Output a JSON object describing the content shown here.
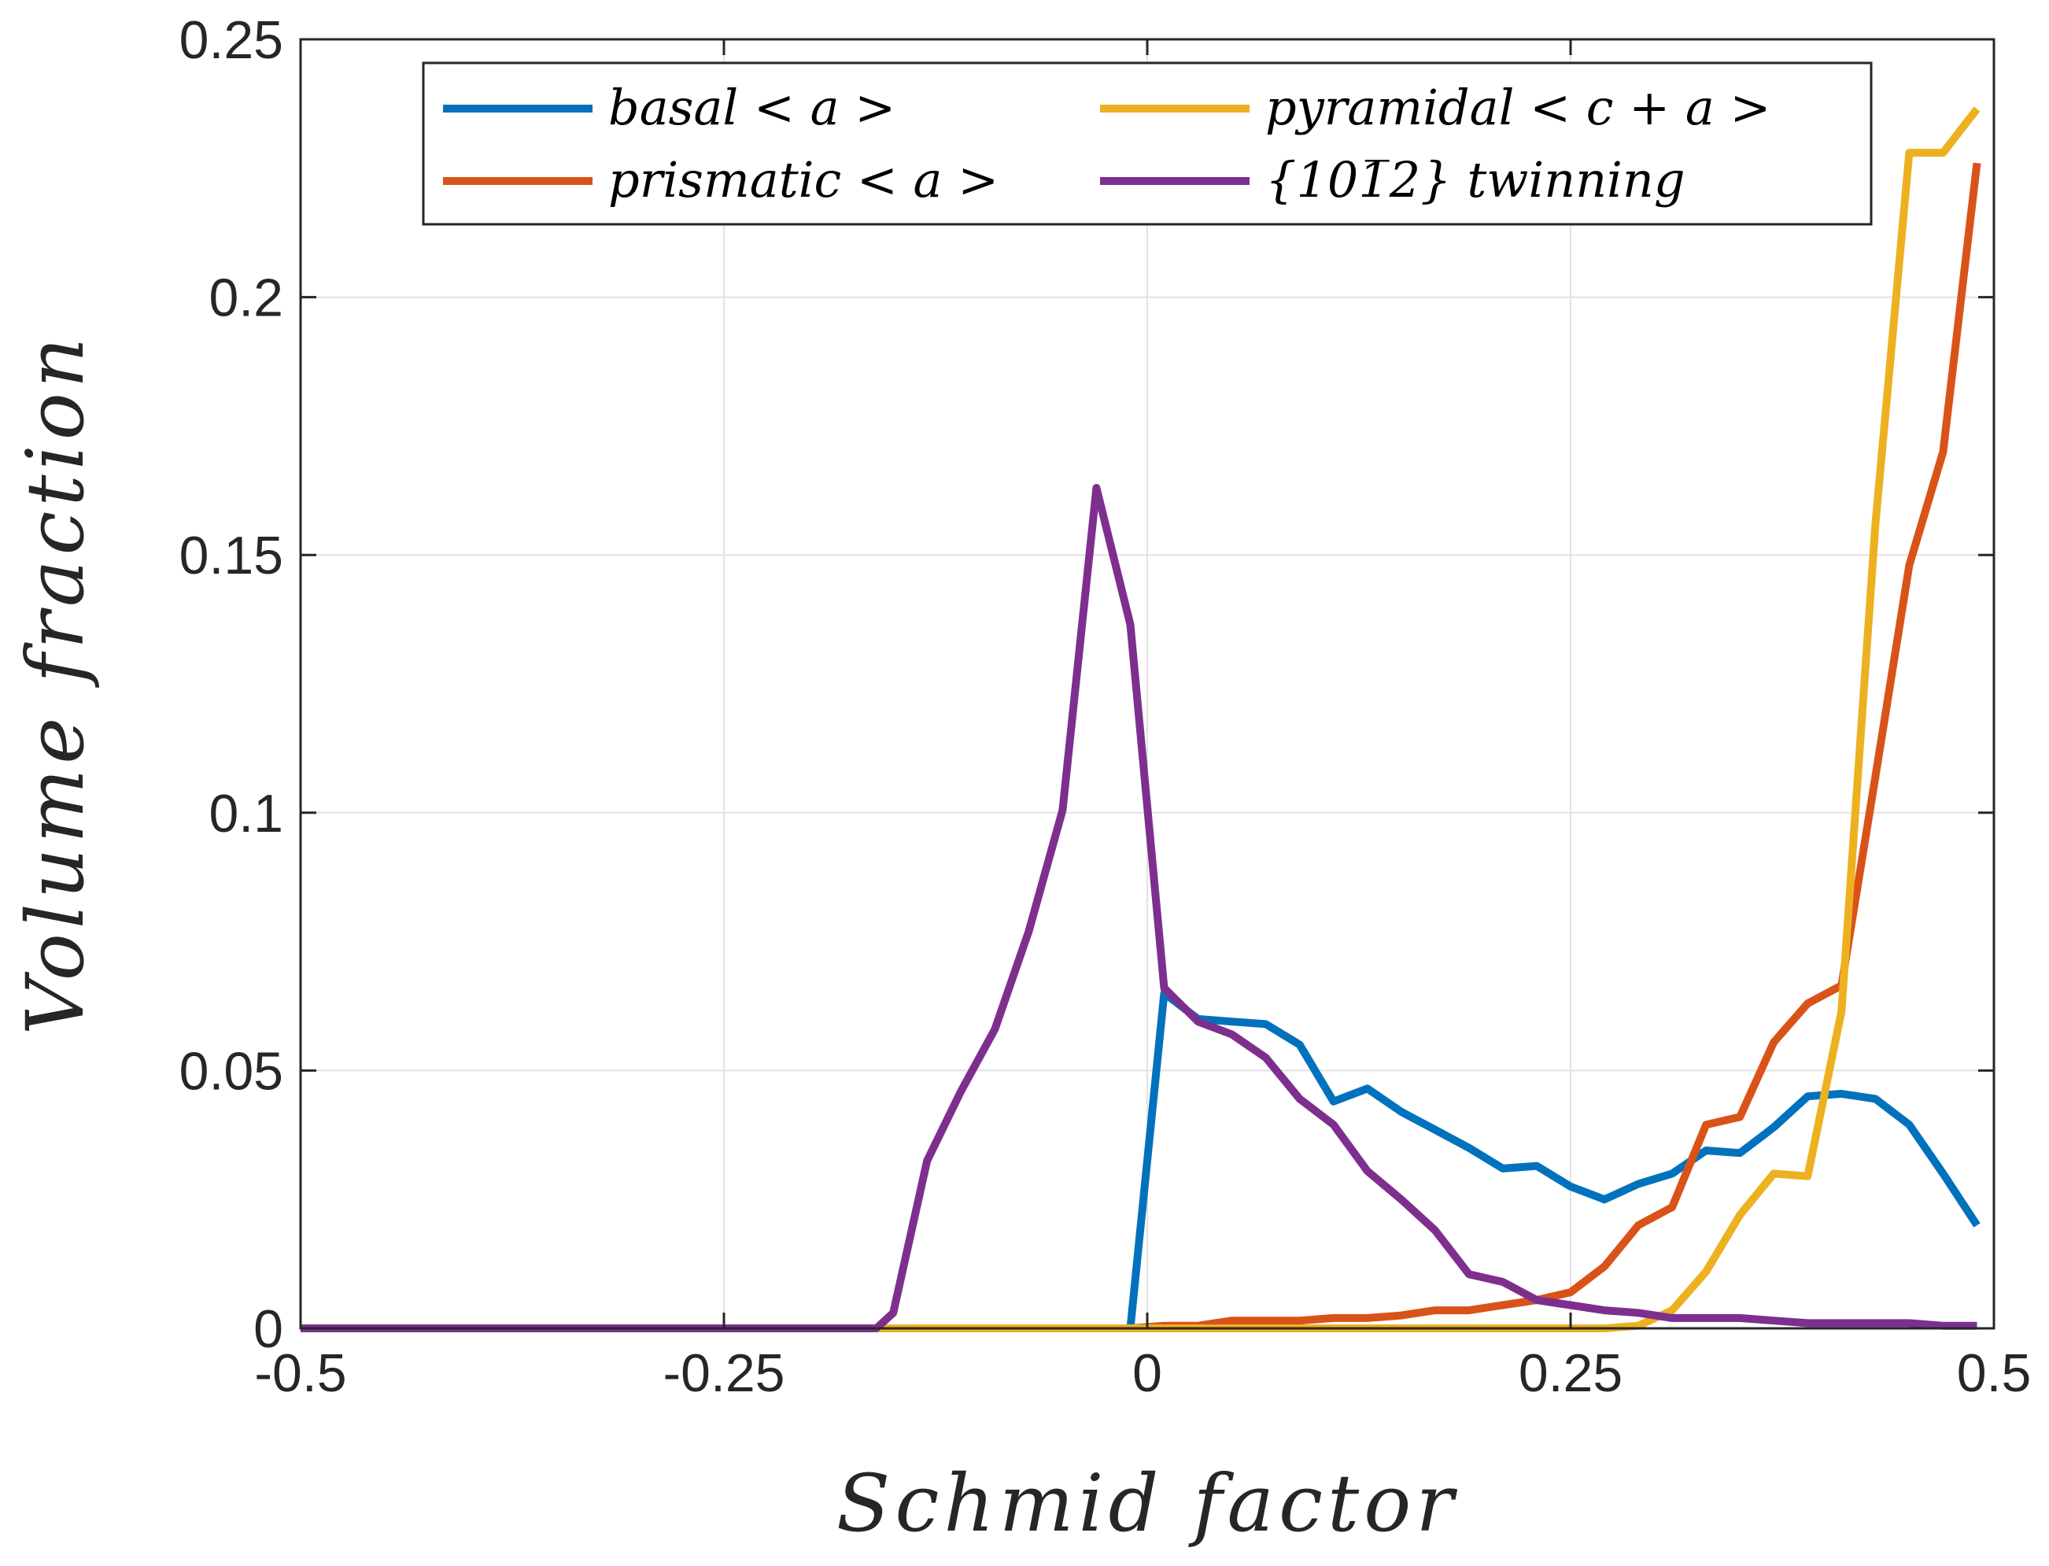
{
  "chart_data": {
    "type": "line",
    "title": "",
    "xlabel": "Schmid factor",
    "ylabel": "Volume fraction",
    "xlim": [
      -0.5,
      0.5
    ],
    "ylim": [
      0,
      0.25
    ],
    "grid": true,
    "legend_position": "top",
    "x_ticks": [
      -0.5,
      -0.25,
      0,
      0.25,
      0.5
    ],
    "x_tick_labels": [
      "-0.5",
      "-0.25",
      "0",
      "0.25",
      "0.5"
    ],
    "y_ticks": [
      0,
      0.05,
      0.1,
      0.15,
      0.2,
      0.25
    ],
    "y_tick_labels": [
      "0",
      "0.05",
      "0.1",
      "0.15",
      "0.2",
      "0.25"
    ],
    "series": [
      {
        "name": "basal < a >",
        "color": "#0072BD",
        "points": [
          [
            -0.5,
            0
          ],
          [
            -0.45,
            0
          ],
          [
            -0.4,
            0
          ],
          [
            -0.35,
            0
          ],
          [
            -0.3,
            0
          ],
          [
            -0.25,
            0
          ],
          [
            -0.2,
            0
          ],
          [
            -0.15,
            0
          ],
          [
            -0.1,
            0
          ],
          [
            -0.05,
            0
          ],
          [
            -0.01,
            0
          ],
          [
            0.01,
            0.065
          ],
          [
            0.03,
            0.06
          ],
          [
            0.05,
            0.0595
          ],
          [
            0.07,
            0.059
          ],
          [
            0.09,
            0.055
          ],
          [
            0.11,
            0.044
          ],
          [
            0.13,
            0.0465
          ],
          [
            0.15,
            0.042
          ],
          [
            0.17,
            0.0385
          ],
          [
            0.19,
            0.035
          ],
          [
            0.21,
            0.031
          ],
          [
            0.23,
            0.0315
          ],
          [
            0.25,
            0.0275
          ],
          [
            0.27,
            0.025
          ],
          [
            0.29,
            0.028
          ],
          [
            0.31,
            0.03
          ],
          [
            0.33,
            0.0345
          ],
          [
            0.35,
            0.034
          ],
          [
            0.37,
            0.039
          ],
          [
            0.39,
            0.045
          ],
          [
            0.41,
            0.0455
          ],
          [
            0.43,
            0.0445
          ],
          [
            0.45,
            0.0395
          ],
          [
            0.47,
            0.03
          ],
          [
            0.49,
            0.02
          ]
        ]
      },
      {
        "name": "prismatic < a >",
        "color": "#D95319",
        "points": [
          [
            -0.5,
            0
          ],
          [
            -0.45,
            0
          ],
          [
            -0.4,
            0
          ],
          [
            -0.35,
            0
          ],
          [
            -0.3,
            0
          ],
          [
            -0.25,
            0
          ],
          [
            -0.2,
            0
          ],
          [
            -0.15,
            0
          ],
          [
            -0.1,
            0
          ],
          [
            -0.05,
            0
          ],
          [
            -0.01,
            0
          ],
          [
            0.01,
            0.0005
          ],
          [
            0.03,
            0.0005
          ],
          [
            0.05,
            0.0015
          ],
          [
            0.07,
            0.0015
          ],
          [
            0.09,
            0.0015
          ],
          [
            0.11,
            0.002
          ],
          [
            0.13,
            0.002
          ],
          [
            0.15,
            0.0025
          ],
          [
            0.17,
            0.0035
          ],
          [
            0.19,
            0.0035
          ],
          [
            0.21,
            0.0045
          ],
          [
            0.23,
            0.0055
          ],
          [
            0.25,
            0.007
          ],
          [
            0.27,
            0.012
          ],
          [
            0.29,
            0.02
          ],
          [
            0.31,
            0.0235
          ],
          [
            0.33,
            0.0395
          ],
          [
            0.35,
            0.041
          ],
          [
            0.37,
            0.0555
          ],
          [
            0.39,
            0.063
          ],
          [
            0.41,
            0.0665
          ],
          [
            0.43,
            0.107
          ],
          [
            0.45,
            0.148
          ],
          [
            0.47,
            0.17
          ],
          [
            0.49,
            0.226
          ]
        ]
      },
      {
        "name": "pyramidal < c + a >",
        "color": "#EDB120",
        "points": [
          [
            -0.5,
            0
          ],
          [
            -0.45,
            0
          ],
          [
            -0.4,
            0
          ],
          [
            -0.35,
            0
          ],
          [
            -0.3,
            0
          ],
          [
            -0.25,
            0
          ],
          [
            -0.2,
            0
          ],
          [
            -0.15,
            0
          ],
          [
            -0.1,
            0
          ],
          [
            -0.05,
            0
          ],
          [
            -0.01,
            0
          ],
          [
            0.01,
            0
          ],
          [
            0.05,
            0
          ],
          [
            0.09,
            0
          ],
          [
            0.13,
            0
          ],
          [
            0.17,
            0
          ],
          [
            0.21,
            0
          ],
          [
            0.25,
            0
          ],
          [
            0.27,
            0
          ],
          [
            0.29,
            0.0005
          ],
          [
            0.31,
            0.0035
          ],
          [
            0.33,
            0.011
          ],
          [
            0.35,
            0.022
          ],
          [
            0.37,
            0.03
          ],
          [
            0.39,
            0.0295
          ],
          [
            0.41,
            0.0615
          ],
          [
            0.43,
            0.156
          ],
          [
            0.45,
            0.228
          ],
          [
            0.47,
            0.228
          ],
          [
            0.49,
            0.2365
          ]
        ]
      },
      {
        "name": "{101̅2} twinning",
        "color": "#7E2F8E",
        "points": [
          [
            -0.5,
            0
          ],
          [
            -0.45,
            0
          ],
          [
            -0.4,
            0
          ],
          [
            -0.35,
            0
          ],
          [
            -0.3,
            0
          ],
          [
            -0.25,
            0
          ],
          [
            -0.2,
            0
          ],
          [
            -0.16,
            0
          ],
          [
            -0.15,
            0.003
          ],
          [
            -0.13,
            0.0325
          ],
          [
            -0.11,
            0.046
          ],
          [
            -0.09,
            0.058
          ],
          [
            -0.07,
            0.077
          ],
          [
            -0.05,
            0.1005
          ],
          [
            -0.03,
            0.163
          ],
          [
            -0.01,
            0.1365
          ],
          [
            0.01,
            0.066
          ],
          [
            0.03,
            0.0595
          ],
          [
            0.05,
            0.057
          ],
          [
            0.07,
            0.0525
          ],
          [
            0.09,
            0.0445
          ],
          [
            0.11,
            0.0395
          ],
          [
            0.13,
            0.0305
          ],
          [
            0.15,
            0.025
          ],
          [
            0.17,
            0.019
          ],
          [
            0.19,
            0.0105
          ],
          [
            0.21,
            0.009
          ],
          [
            0.23,
            0.0055
          ],
          [
            0.25,
            0.0045
          ],
          [
            0.27,
            0.0035
          ],
          [
            0.29,
            0.003
          ],
          [
            0.31,
            0.002
          ],
          [
            0.33,
            0.002
          ],
          [
            0.35,
            0.002
          ],
          [
            0.37,
            0.0015
          ],
          [
            0.39,
            0.001
          ],
          [
            0.41,
            0.001
          ],
          [
            0.43,
            0.001
          ],
          [
            0.45,
            0.001
          ],
          [
            0.47,
            0.0005
          ],
          [
            0.49,
            0.0005
          ]
        ]
      }
    ],
    "legend": {
      "entries": [
        {
          "label": "basal < a >",
          "color": "#0072BD"
        },
        {
          "label": "pyramidal < c + a >",
          "color": "#EDB120"
        },
        {
          "label": "prismatic < a >",
          "color": "#D95319"
        },
        {
          "label": "{101̅2} twinning",
          "color": "#7E2F8E"
        }
      ]
    }
  }
}
